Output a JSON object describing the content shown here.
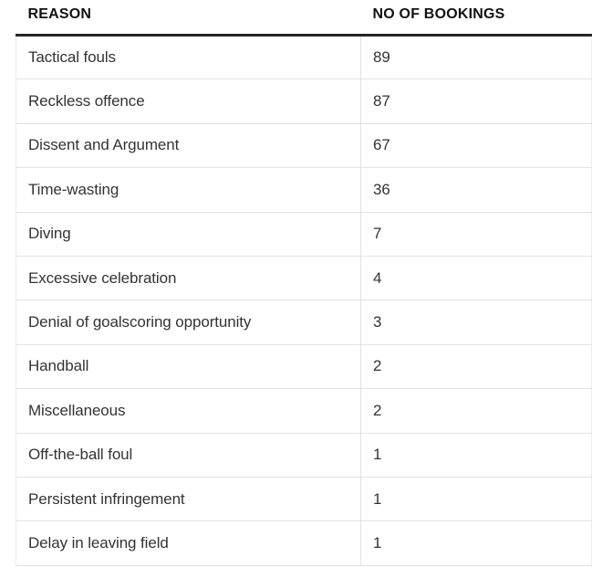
{
  "colors": {
    "background": "#ffffff",
    "header_text": "#121212",
    "body_text": "#333333",
    "header_rule": "#262626",
    "row_divider": "#e2e2e2",
    "outer_border": "#ececec"
  },
  "table": {
    "columns": [
      {
        "label": "REASON"
      },
      {
        "label": "NO OF BOOKINGS"
      }
    ],
    "rows": [
      {
        "reason": "Tactical fouls",
        "bookings": "89"
      },
      {
        "reason": "Reckless offence",
        "bookings": "87"
      },
      {
        "reason": "Dissent and Argument",
        "bookings": "67"
      },
      {
        "reason": "Time-wasting",
        "bookings": "36"
      },
      {
        "reason": "Diving",
        "bookings": "7"
      },
      {
        "reason": "Excessive celebration",
        "bookings": "4"
      },
      {
        "reason": "Denial of goalscoring opportunity",
        "bookings": "3"
      },
      {
        "reason": "Handball",
        "bookings": "2"
      },
      {
        "reason": "Miscellaneous",
        "bookings": "2"
      },
      {
        "reason": "Off-the-ball foul",
        "bookings": "1"
      },
      {
        "reason": "Persistent infringement",
        "bookings": "1"
      },
      {
        "reason": "Delay in leaving field",
        "bookings": "1"
      }
    ]
  },
  "chart_data": {
    "type": "table",
    "title": "",
    "columns": [
      "REASON",
      "NO OF BOOKINGS"
    ],
    "categories": [
      "Tactical fouls",
      "Reckless offence",
      "Dissent and Argument",
      "Time-wasting",
      "Diving",
      "Excessive celebration",
      "Denial of goalscoring opportunity",
      "Handball",
      "Miscellaneous",
      "Off-the-ball foul",
      "Persistent infringement",
      "Delay in leaving field"
    ],
    "values": [
      89,
      87,
      67,
      36,
      7,
      4,
      3,
      2,
      2,
      1,
      1,
      1
    ]
  }
}
